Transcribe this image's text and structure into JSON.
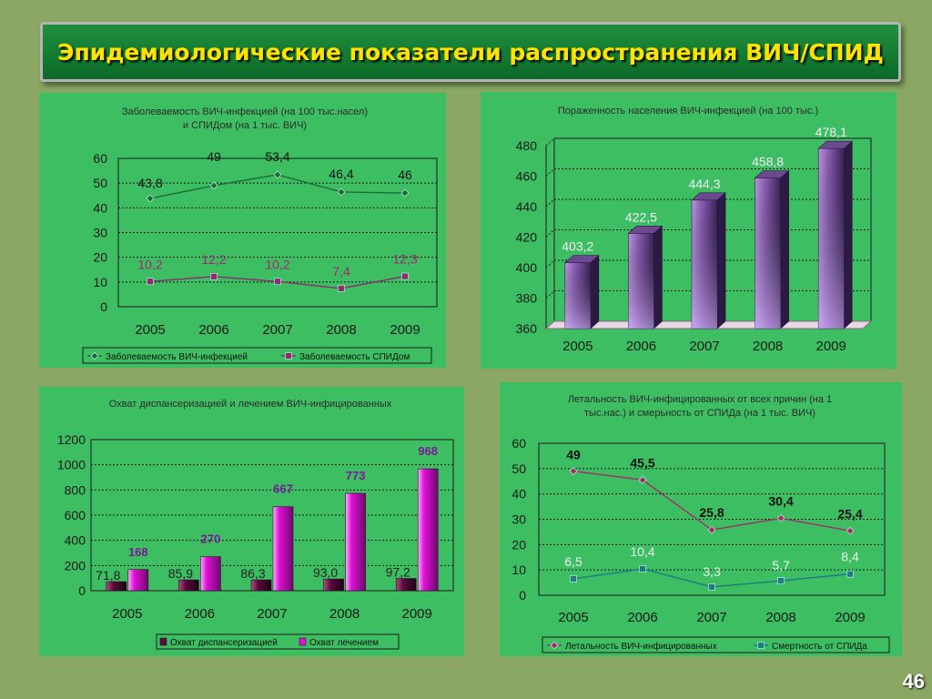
{
  "slide": {
    "title": "Эпидемиологические показатели распространения ВИЧ/СПИД",
    "page_number": "46"
  },
  "colors": {
    "background": "#8aa864",
    "panel": "#3dbe62",
    "title_text": "#ffe300"
  },
  "chart_data": [
    {
      "type": "line",
      "title": "Заболеваемость ВИЧ-инфекцией (на 100 тыс.насел) и СПИДом (на 1 тыс. ВИЧ)",
      "title_lines": [
        "Заболеваемость ВИЧ-инфекцией (на 100 тыс.насел)",
        "и СПИДом (на 1 тыс. ВИЧ)"
      ],
      "categories": [
        "2005",
        "2006",
        "2007",
        "2008",
        "2009"
      ],
      "ylim": [
        0,
        60
      ],
      "yticks": [
        "0",
        "10",
        "20",
        "30",
        "40",
        "50",
        "60"
      ],
      "grid": true,
      "legend": "bottom",
      "series": [
        {
          "name": "Заболеваемость ВИЧ-инфекцией",
          "values": [
            43.8,
            49,
            53.4,
            46.4,
            46
          ],
          "labels": [
            "43,8",
            "49",
            "53,4",
            "46,4",
            "46"
          ],
          "color": "#1e6b3a",
          "label_color": "#111111",
          "marker": "diamond"
        },
        {
          "name": "Заболеваемость СПИДом",
          "values": [
            10.2,
            12.2,
            10.2,
            7.4,
            12.3
          ],
          "labels": [
            "10,2",
            "12,2",
            "10,2",
            "7,4",
            "12,3"
          ],
          "color": "#8b2c6e",
          "label_color": "#a62577",
          "marker": "square"
        }
      ]
    },
    {
      "type": "bar",
      "title": "Пораженность населения ВИЧ-инфекцией (на 100 тыс.)",
      "title_lines": [
        "Пораженность населения ВИЧ-инфекцией (на 100 тыс.)"
      ],
      "categories": [
        "2005",
        "2006",
        "2007",
        "2008",
        "2009"
      ],
      "values": [
        403.2,
        422.5,
        444.3,
        458.8,
        478.1
      ],
      "labels": [
        "403,2",
        "422,5",
        "444,3",
        "458,8",
        "478,1"
      ],
      "ylim": [
        360,
        480
      ],
      "yticks": [
        "360",
        "380",
        "400",
        "420",
        "440",
        "460",
        "480"
      ],
      "grid": true,
      "legend": "none",
      "bar_color": "#8e62b8"
    },
    {
      "type": "bar",
      "title": "Охват диспансеризацией и лечением ВИЧ-инфицированных",
      "title_lines": [
        "Охват диспансеризацией и лечением ВИЧ-инфицированных"
      ],
      "categories": [
        "2005",
        "2006",
        "2007",
        "2008",
        "2009"
      ],
      "ylim": [
        0,
        1200
      ],
      "yticks": [
        "0",
        "200",
        "400",
        "600",
        "800",
        "1000",
        "1200"
      ],
      "grid": true,
      "legend": "bottom",
      "series": [
        {
          "name": "Охват диспансеризацией",
          "values": [
            71.8,
            85.9,
            86.3,
            93.0,
            97.2
          ],
          "labels": [
            "71,8",
            "85,9",
            "86,3",
            "93,0",
            "97,2"
          ],
          "color": "#5a0a3c",
          "label_color": "#222222"
        },
        {
          "name": "Охват лечением",
          "values": [
            168,
            270,
            667,
            773,
            968
          ],
          "labels": [
            "168",
            "270",
            "667",
            "773",
            "968"
          ],
          "color": "#e010d8",
          "label_color": "#7a1a9c"
        }
      ]
    },
    {
      "type": "line",
      "title": "Летальность ВИЧ-инфицированных от всех причин (на 1 тыс.нас.) и смерьность от СПИДа (на 1 тыс. ВИЧ)",
      "title_lines": [
        "Летальность ВИЧ-инфицированных от всех причин (на 1",
        "тыс.нас.) и смерьность от СПИДа (на 1 тыс. ВИЧ)"
      ],
      "categories": [
        "2005",
        "2006",
        "2007",
        "2008",
        "2009"
      ],
      "ylim": [
        0,
        60
      ],
      "yticks": [
        "0",
        "10",
        "20",
        "30",
        "40",
        "50",
        "60"
      ],
      "grid": true,
      "legend": "bottom",
      "series": [
        {
          "name": "Летальность ВИЧ-инфицированных",
          "values": [
            49,
            45.5,
            25.8,
            30.4,
            25.4
          ],
          "labels": [
            "49",
            "45,5",
            "25,8",
            "30,4",
            "25,4"
          ],
          "color": "#a0306a",
          "label_color": "#111111",
          "marker": "diamond"
        },
        {
          "name": "Смертность от СПИДа",
          "values": [
            6.5,
            10.4,
            3.3,
            5.7,
            8.4
          ],
          "labels": [
            "6,5",
            "10,4",
            "3,3",
            "5,7",
            "8,4"
          ],
          "color": "#1f7a82",
          "label_color": "#e9f4ea",
          "marker": "square"
        }
      ]
    }
  ]
}
